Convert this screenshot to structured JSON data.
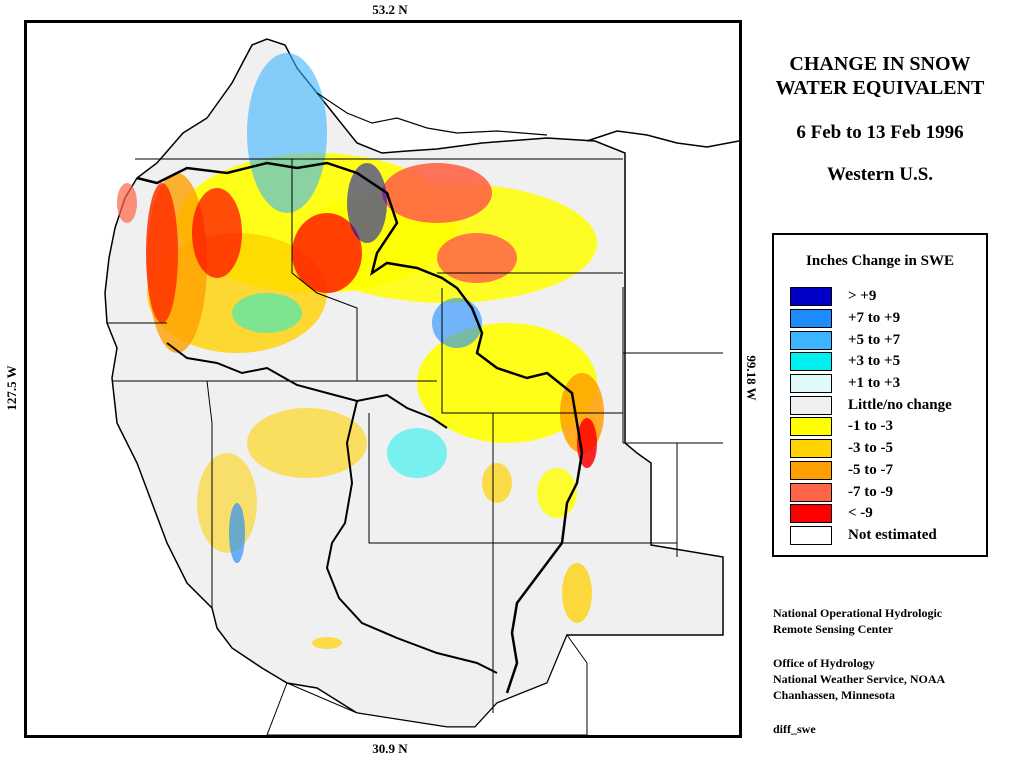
{
  "labels": {
    "lat_top": "53.2 N",
    "lat_bottom": "30.9 N",
    "lon_left": "127.5 W",
    "lon_right": "99.18 W"
  },
  "title": {
    "line1": "CHANGE IN SNOW",
    "line2": "WATER EQUIVALENT",
    "date_range": "6 Feb to 13 Feb 1996",
    "region": "Western U.S."
  },
  "legend": {
    "title": "Inches Change in SWE",
    "items": [
      {
        "label": "> +9",
        "color": "#0000c8"
      },
      {
        "label": "+7 to +9",
        "color": "#1e8cff"
      },
      {
        "label": "+5 to +7",
        "color": "#3cb4ff"
      },
      {
        "label": "+3 to +5",
        "color": "#00f0f0"
      },
      {
        "label": "+1 to +3",
        "color": "#e0fafa"
      },
      {
        "label": "Little/no change",
        "color": "#f0f0f0"
      },
      {
        "label": "-1 to -3",
        "color": "#ffff00"
      },
      {
        "label": "-3 to -5",
        "color": "#ffd200"
      },
      {
        "label": "-5 to -7",
        "color": "#ffa000"
      },
      {
        "label": "-7 to -9",
        "color": "#ff6446"
      },
      {
        "label": "< -9",
        "color": "#ff0000"
      },
      {
        "label": "Not estimated",
        "color": "#ffffff"
      }
    ]
  },
  "credits": {
    "org_line1": "National Operational Hydrologic",
    "org_line2": "Remote Sensing Center",
    "office_line1": "Office of Hydrology",
    "office_line2": "National Weather Service, NOAA",
    "office_line3": "Chanhassen, Minnesota",
    "product": "diff_swe"
  }
}
